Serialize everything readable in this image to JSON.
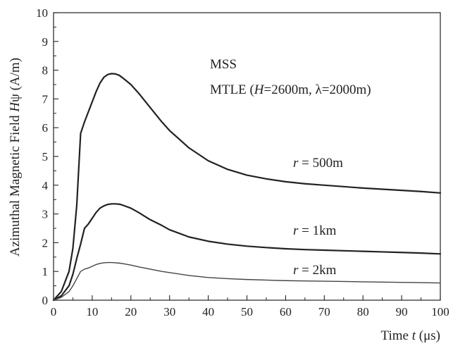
{
  "chart_data": {
    "type": "line",
    "title": "",
    "xlabel_parts": [
      "Time ",
      "t",
      " (μs)"
    ],
    "ylabel_parts": [
      "Azimuthal Magnetic Field  ",
      "H",
      "ψ (A/m)"
    ],
    "xlim": [
      0,
      100
    ],
    "ylim": [
      0,
      10
    ],
    "xticks": [
      0,
      10,
      20,
      30,
      40,
      50,
      60,
      70,
      80,
      90,
      100
    ],
    "yticks": [
      0,
      1,
      2,
      3,
      4,
      5,
      6,
      7,
      8,
      9,
      10
    ],
    "grid": false,
    "annotations": {
      "model": "MSS",
      "mtle_prefix": "MTLE (",
      "mtle_H": "H",
      "mtle_H_val": "=2600m, ",
      "mtle_lambda": "λ=2000m)"
    },
    "series": [
      {
        "label_var": "r",
        "label_rest": " = 500m",
        "color": "#222222",
        "x": [
          0,
          2,
          4,
          5,
          6,
          7,
          8,
          9,
          10,
          11,
          12,
          13,
          14,
          15,
          16,
          17,
          18,
          20,
          22,
          25,
          28,
          30,
          35,
          40,
          45,
          50,
          55,
          60,
          65,
          70,
          75,
          80,
          85,
          90,
          95,
          100
        ],
        "y": [
          0,
          0.3,
          1.0,
          1.8,
          3.3,
          5.8,
          6.2,
          6.55,
          6.9,
          7.25,
          7.55,
          7.75,
          7.85,
          7.88,
          7.87,
          7.82,
          7.72,
          7.5,
          7.2,
          6.7,
          6.2,
          5.9,
          5.3,
          4.85,
          4.55,
          4.35,
          4.22,
          4.12,
          4.05,
          4.0,
          3.95,
          3.9,
          3.86,
          3.82,
          3.78,
          3.73
        ]
      },
      {
        "label_var": "r",
        "label_rest": " = 1km",
        "color": "#222222",
        "x": [
          0,
          2,
          4,
          5,
          6,
          7,
          8,
          9,
          10,
          11,
          12,
          13,
          14,
          15,
          16,
          17,
          18,
          20,
          22,
          25,
          28,
          30,
          35,
          40,
          45,
          50,
          55,
          60,
          65,
          70,
          75,
          80,
          85,
          90,
          95,
          100
        ],
        "y": [
          0,
          0.15,
          0.5,
          0.9,
          1.45,
          1.95,
          2.5,
          2.65,
          2.85,
          3.05,
          3.2,
          3.28,
          3.33,
          3.35,
          3.35,
          3.34,
          3.3,
          3.2,
          3.05,
          2.8,
          2.6,
          2.45,
          2.2,
          2.05,
          1.95,
          1.88,
          1.83,
          1.79,
          1.76,
          1.74,
          1.72,
          1.7,
          1.68,
          1.66,
          1.64,
          1.61
        ]
      },
      {
        "label_var": "r",
        "label_rest": " = 2km",
        "color": "#444444",
        "x": [
          0,
          2,
          4,
          5,
          6,
          7,
          8,
          9,
          10,
          11,
          12,
          13,
          14,
          15,
          16,
          17,
          18,
          20,
          22,
          25,
          28,
          30,
          35,
          40,
          45,
          50,
          55,
          60,
          65,
          70,
          75,
          80,
          85,
          90,
          95,
          100
        ],
        "y": [
          0,
          0.1,
          0.3,
          0.5,
          0.75,
          1.0,
          1.08,
          1.12,
          1.18,
          1.24,
          1.28,
          1.3,
          1.31,
          1.31,
          1.3,
          1.29,
          1.27,
          1.22,
          1.16,
          1.08,
          1.0,
          0.96,
          0.86,
          0.79,
          0.75,
          0.72,
          0.7,
          0.68,
          0.67,
          0.66,
          0.65,
          0.64,
          0.63,
          0.62,
          0.61,
          0.6
        ]
      }
    ]
  }
}
